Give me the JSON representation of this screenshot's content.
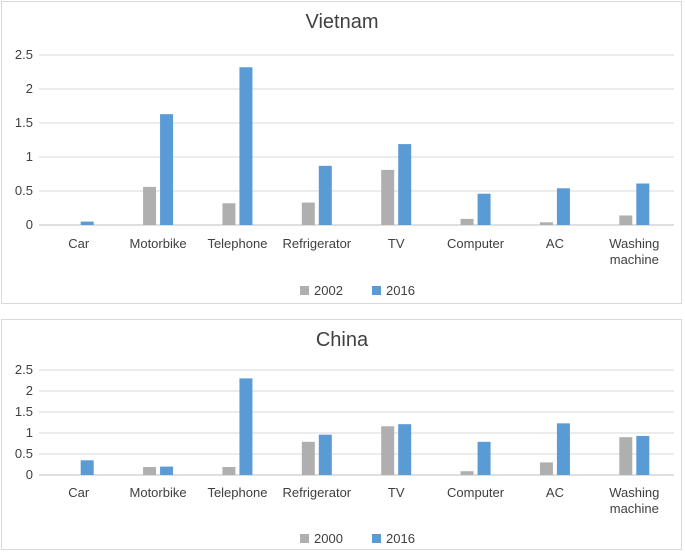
{
  "colors": {
    "series_a": "#afafaf",
    "series_b": "#5b9bd5",
    "grid": "#d9d9d9",
    "axis": "#bfbfbf"
  },
  "chart_data": [
    {
      "type": "bar",
      "title": "Vietnam",
      "categories": [
        "Car",
        "Motorbike",
        "Telephone",
        "Refrigerator",
        "TV",
        "Computer",
        "AC",
        "Washing machine"
      ],
      "series": [
        {
          "name": "2002",
          "values": [
            0,
            0.56,
            0.32,
            0.33,
            0.81,
            0.09,
            0.04,
            0.14
          ]
        },
        {
          "name": "2016",
          "values": [
            0.05,
            1.63,
            2.32,
            0.87,
            1.19,
            0.46,
            0.54,
            0.61
          ]
        }
      ],
      "ylim": [
        0,
        2.5
      ],
      "yticks": [
        "0",
        "0.5",
        "1",
        "1.5",
        "2",
        "2.5"
      ],
      "grid": true,
      "legend": "bottom"
    },
    {
      "type": "bar",
      "title": "China",
      "categories": [
        "Car",
        "Motorbike",
        "Telephone",
        "Refrigerator",
        "TV",
        "Computer",
        "AC",
        "Washing machine"
      ],
      "series": [
        {
          "name": "2000",
          "values": [
            0,
            0.19,
            0.19,
            0.79,
            1.16,
            0.09,
            0.3,
            0.9
          ]
        },
        {
          "name": "2016",
          "values": [
            0.35,
            0.2,
            2.3,
            0.96,
            1.21,
            0.79,
            1.23,
            0.93
          ]
        }
      ],
      "ylim": [
        0,
        2.5
      ],
      "yticks": [
        "0",
        "0.5",
        "1",
        "1.5",
        "2",
        "2.5"
      ],
      "grid": true,
      "legend": "bottom"
    }
  ]
}
